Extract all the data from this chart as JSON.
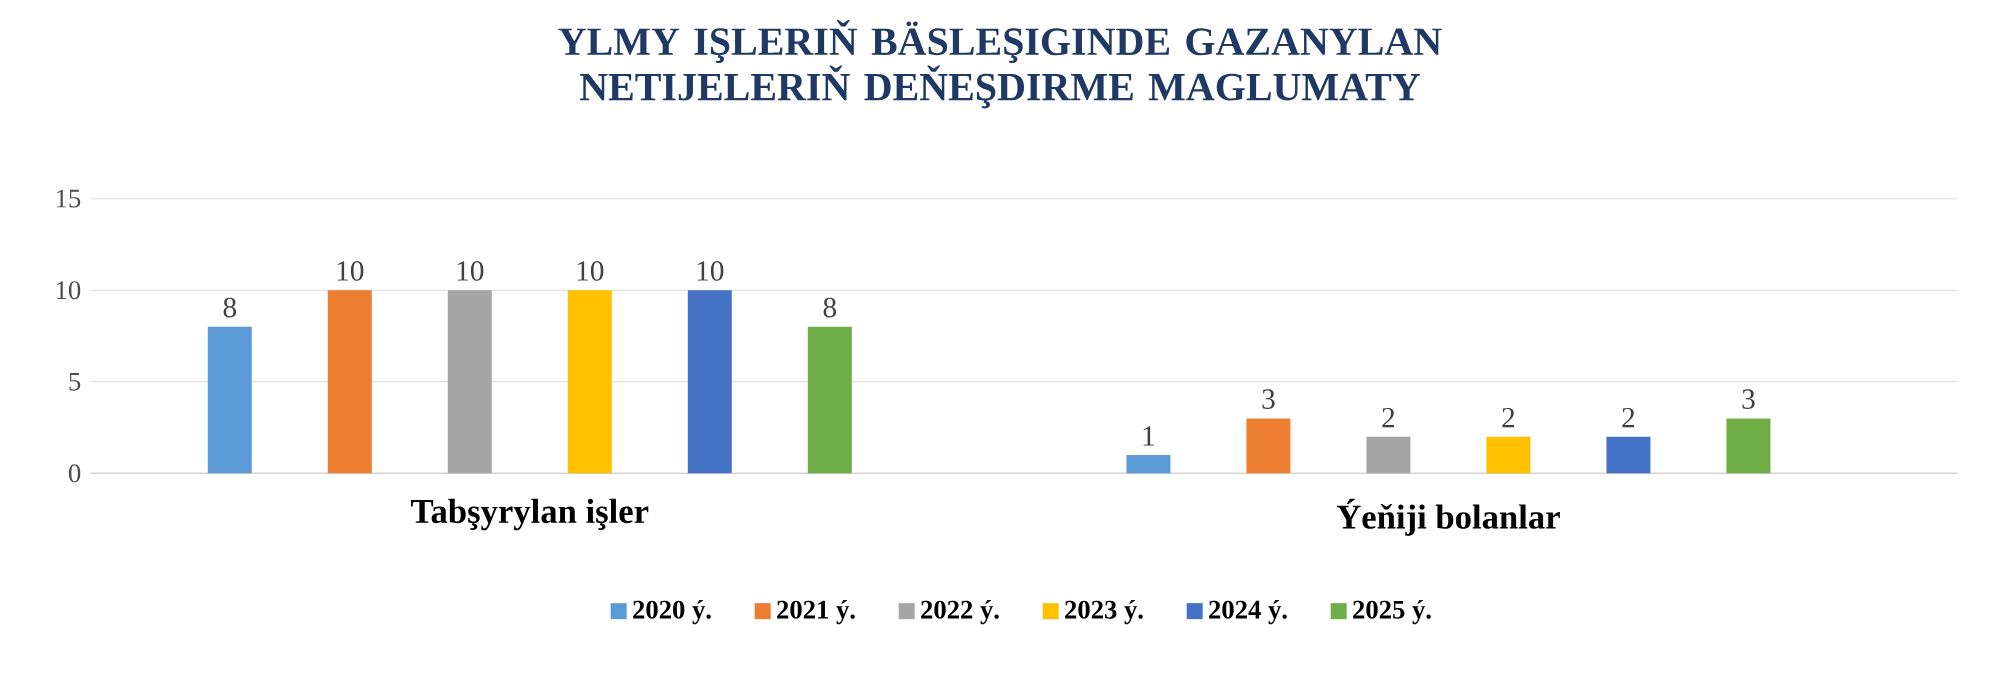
{
  "chart_data": {
    "type": "bar",
    "title": "YLMY IŞLERIŇ BÄSLEŞIGINDE GAZANYLAN NETIJELERIŇ DEŇEŞDIRME MAGLUMATY",
    "categories": [
      "Tabşyrylan işler",
      "Ýeňiji bolanlar"
    ],
    "series": [
      {
        "name": "2020 ý.",
        "color": "#5b9bd5",
        "values": [
          8,
          1
        ]
      },
      {
        "name": "2021 ý.",
        "color": "#ed7d31",
        "values": [
          10,
          3
        ]
      },
      {
        "name": "2022 ý.",
        "color": "#a5a5a5",
        "values": [
          10,
          2
        ]
      },
      {
        "name": "2023 ý.",
        "color": "#ffc000",
        "values": [
          10,
          2
        ]
      },
      {
        "name": "2024 ý.",
        "color": "#4472c4",
        "values": [
          10,
          2
        ]
      },
      {
        "name": "2025 ý.",
        "color": "#70ad47",
        "values": [
          8,
          3
        ]
      }
    ],
    "ylim": [
      0,
      15
    ],
    "yticks": [
      0,
      5,
      10,
      15
    ],
    "grid": "y",
    "legend": "bottom",
    "data_labels": true
  }
}
